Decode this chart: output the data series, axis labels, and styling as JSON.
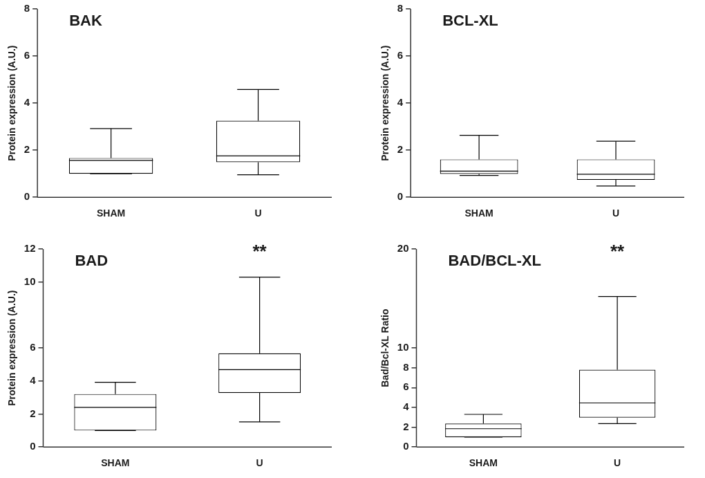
{
  "chart_data": [
    {
      "type": "box",
      "title": "BAK",
      "ylabel": "Protein expression (A.U.)",
      "categories": [
        "SHAM",
        "U"
      ],
      "color": "#000000",
      "ylim": [
        0,
        8
      ],
      "yticks": [
        0,
        2,
        4,
        6,
        8
      ],
      "boxes": [
        {
          "low": 1.0,
          "q1": 1.0,
          "median": 1.57,
          "q3": 1.67,
          "high": 2.92
        },
        {
          "low": 0.96,
          "q1": 1.49,
          "median": 1.76,
          "q3": 3.25,
          "high": 4.58
        }
      ]
    },
    {
      "type": "box",
      "title": "BCL-XL",
      "ylabel": "Protein expression (A.U.)",
      "categories": [
        "SHAM",
        "U"
      ],
      "color": "#000000",
      "ylim": [
        0,
        8
      ],
      "yticks": [
        0,
        2,
        4,
        6,
        8
      ],
      "boxes": [
        {
          "low": 0.93,
          "q1": 0.99,
          "median": 1.11,
          "q3": 1.61,
          "high": 2.63
        },
        {
          "low": 0.48,
          "q1": 0.74,
          "median": 0.98,
          "q3": 1.61,
          "high": 2.38
        }
      ]
    },
    {
      "type": "box",
      "title": "BAD",
      "ylabel": "Protein expression (A.U.)",
      "categories": [
        "SHAM",
        "U"
      ],
      "color": "#000000",
      "ylim": [
        0,
        12
      ],
      "yticks": [
        0,
        2,
        4,
        6,
        10,
        12
      ],
      "boxes": [
        {
          "low": 1.0,
          "q1": 1.0,
          "median": 2.4,
          "q3": 3.21,
          "high": 3.92
        },
        {
          "low": 1.52,
          "q1": 3.28,
          "median": 4.69,
          "q3": 5.68,
          "high": 10.3
        }
      ],
      "annotations": [
        "**"
      ]
    },
    {
      "type": "box",
      "title": "BAD/BCL-XL",
      "ylabel": "Bad/Bcl-XL Ratio",
      "categories": [
        "SHAM",
        "U"
      ],
      "color": "#000000",
      "ylim": [
        0,
        20
      ],
      "yticks": [
        0,
        2,
        4,
        6,
        8,
        10,
        20
      ],
      "boxes": [
        {
          "low": 1.0,
          "q1": 1.0,
          "median": 1.85,
          "q3": 2.37,
          "high": 3.3
        },
        {
          "low": 2.36,
          "q1": 2.97,
          "median": 4.45,
          "q3": 7.81,
          "high": 15.2
        }
      ],
      "annotations": [
        "**"
      ]
    }
  ]
}
